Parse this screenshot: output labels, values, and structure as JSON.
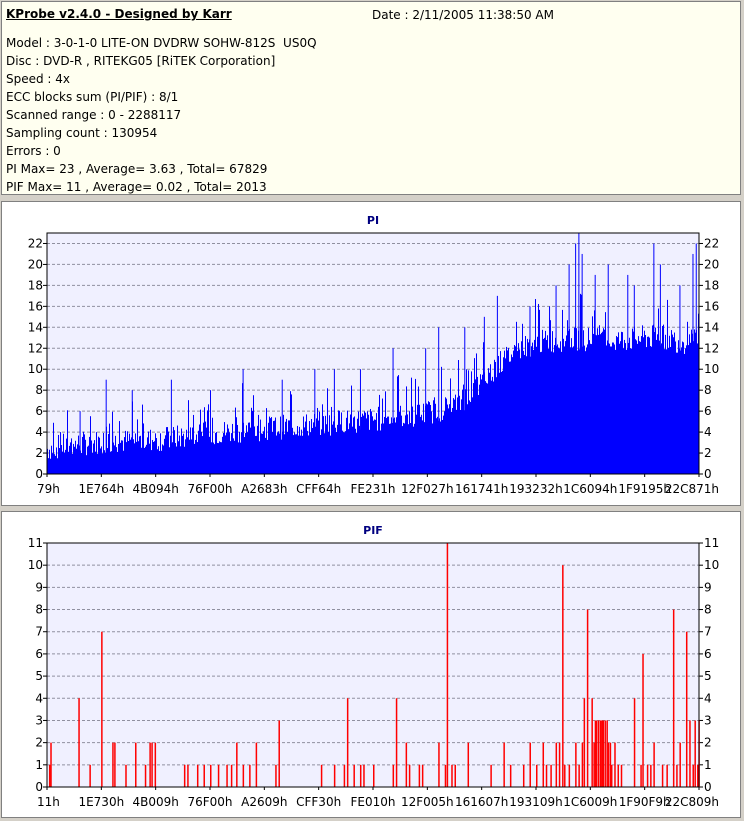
{
  "info": {
    "title": "KProbe v2.4.0 - Designed by Karr",
    "date": "Date : 2/11/2005 11:38:50 AM",
    "lines": [
      "Model : 3-0-1-0 LITE-ON DVDRW SOHW-812S  US0Q",
      "Disc : DVD-R , RITEKG05 [RiTEK Corporation]",
      "Speed : 4x",
      "ECC blocks sum (PI/PIF) : 8/1",
      "Scanned range : 0 - 2288117",
      "Sampling count : 130954",
      "Errors : 0",
      "PI Max= 23 , Average= 3.63 , Total= 67829",
      "PIF Max= 11 , Average= 0.02 , Total= 2013"
    ]
  },
  "colors": {
    "pi": "#0000ff",
    "pif": "#ff0000",
    "plot_bg": "#f0f0ff",
    "grid": "#9090a0",
    "title": "#000080"
  },
  "chart_data": [
    {
      "type": "bar",
      "title": "PI",
      "ylim": [
        0,
        23
      ],
      "yticks": [
        0,
        2,
        4,
        6,
        8,
        10,
        12,
        14,
        16,
        18,
        20,
        22
      ],
      "tick_labels": [
        "79h",
        "1E764h",
        "4B094h",
        "76F00h",
        "A2683h",
        "CFF64h",
        "FE231h",
        "12F027h",
        "161741h",
        "193232h",
        "1C6094h",
        "1F9195h",
        "22C871h"
      ],
      "grid": true,
      "baseline": [
        2.3,
        2.6,
        2.8,
        3,
        3,
        3.1,
        3.2,
        3.4,
        3.6,
        3.8,
        4,
        4.1,
        4.3,
        4.4,
        4.6,
        4.7,
        4.9,
        5,
        5.2,
        5.4,
        5.6,
        6,
        6.6,
        8,
        10,
        11.5,
        12.3,
        12.6,
        12.8,
        12.8,
        12.6,
        12.7,
        12.9,
        13,
        12.5,
        12.6
      ],
      "peaks": [
        [
          0.1,
          4
        ],
        [
          0.02,
          4
        ],
        [
          0.05,
          6
        ],
        [
          0.09,
          9
        ],
        [
          0.13,
          8
        ],
        [
          0.19,
          9
        ],
        [
          0.25,
          8
        ],
        [
          0.3,
          10
        ],
        [
          0.36,
          9
        ],
        [
          0.41,
          10
        ],
        [
          0.44,
          10
        ],
        [
          0.48,
          10
        ],
        [
          0.53,
          12
        ],
        [
          0.58,
          12
        ],
        [
          0.6,
          14
        ],
        [
          0.64,
          14
        ],
        [
          0.67,
          15
        ],
        [
          0.69,
          17
        ],
        [
          0.74,
          16
        ],
        [
          0.77,
          16
        ],
        [
          0.78,
          18
        ],
        [
          0.82,
          21
        ],
        [
          0.8,
          20
        ],
        [
          0.84,
          19
        ],
        [
          0.81,
          22
        ],
        [
          0.815,
          23
        ],
        [
          0.86,
          20
        ],
        [
          0.89,
          19
        ],
        [
          0.9,
          18
        ],
        [
          0.93,
          22
        ],
        [
          0.94,
          20
        ],
        [
          0.97,
          18
        ],
        [
          0.99,
          21
        ],
        [
          0.995,
          22
        ]
      ]
    },
    {
      "type": "bar",
      "title": "PIF",
      "ylim": [
        0,
        11
      ],
      "yticks": [
        0,
        1,
        2,
        3,
        4,
        5,
        6,
        7,
        8,
        9,
        10,
        11
      ],
      "tick_labels": [
        "11h",
        "1E730h",
        "4B009h",
        "76F00h",
        "A2609h",
        "CFF30h",
        "FE010h",
        "12F005h",
        "161607h",
        "193109h",
        "1C6009h",
        "1F90F9h",
        "22C809h"
      ],
      "grid": true,
      "spikes": [
        [
          0.003,
          1
        ],
        [
          0.005,
          2
        ],
        [
          0.048,
          4
        ],
        [
          0.065,
          1
        ],
        [
          0.083,
          7
        ],
        [
          0.1,
          2
        ],
        [
          0.103,
          2
        ],
        [
          0.12,
          1
        ],
        [
          0.135,
          2
        ],
        [
          0.15,
          1
        ],
        [
          0.157,
          2
        ],
        [
          0.16,
          2
        ],
        [
          0.165,
          2
        ],
        [
          0.21,
          1
        ],
        [
          0.215,
          1
        ],
        [
          0.23,
          1
        ],
        [
          0.24,
          1
        ],
        [
          0.25,
          1
        ],
        [
          0.262,
          1
        ],
        [
          0.275,
          1
        ],
        [
          0.282,
          1
        ],
        [
          0.29,
          2
        ],
        [
          0.3,
          1
        ],
        [
          0.31,
          1
        ],
        [
          0.32,
          2
        ],
        [
          0.35,
          1
        ],
        [
          0.355,
          3
        ],
        [
          0.42,
          1
        ],
        [
          0.44,
          1
        ],
        [
          0.455,
          1
        ],
        [
          0.46,
          4
        ],
        [
          0.47,
          1
        ],
        [
          0.48,
          1
        ],
        [
          0.485,
          1
        ],
        [
          0.5,
          1
        ],
        [
          0.53,
          1
        ],
        [
          0.535,
          4
        ],
        [
          0.55,
          2
        ],
        [
          0.555,
          1
        ],
        [
          0.57,
          1
        ],
        [
          0.575,
          1
        ],
        [
          0.6,
          2
        ],
        [
          0.61,
          1
        ],
        [
          0.613,
          11
        ],
        [
          0.62,
          1
        ],
        [
          0.625,
          1
        ],
        [
          0.645,
          2
        ],
        [
          0.68,
          1
        ],
        [
          0.7,
          2
        ],
        [
          0.71,
          1
        ],
        [
          0.73,
          1
        ],
        [
          0.74,
          2
        ],
        [
          0.75,
          1
        ],
        [
          0.76,
          2
        ],
        [
          0.765,
          1
        ],
        [
          0.772,
          1
        ],
        [
          0.78,
          2
        ],
        [
          0.785,
          2
        ],
        [
          0.79,
          10
        ],
        [
          0.793,
          1
        ],
        [
          0.8,
          1
        ],
        [
          0.81,
          2
        ],
        [
          0.815,
          1
        ],
        [
          0.82,
          2
        ],
        [
          0.823,
          4
        ],
        [
          0.828,
          8
        ],
        [
          0.835,
          4
        ],
        [
          0.838,
          2
        ],
        [
          0.84,
          3
        ],
        [
          0.842,
          3
        ],
        [
          0.845,
          3
        ],
        [
          0.848,
          3
        ],
        [
          0.85,
          3
        ],
        [
          0.852,
          3
        ],
        [
          0.855,
          3
        ],
        [
          0.858,
          3
        ],
        [
          0.86,
          2
        ],
        [
          0.863,
          2
        ],
        [
          0.865,
          1
        ],
        [
          0.87,
          2
        ],
        [
          0.875,
          1
        ],
        [
          0.88,
          1
        ],
        [
          0.9,
          4
        ],
        [
          0.91,
          1
        ],
        [
          0.913,
          6
        ],
        [
          0.92,
          1
        ],
        [
          0.925,
          1
        ],
        [
          0.93,
          2
        ],
        [
          0.943,
          1
        ],
        [
          0.95,
          1
        ],
        [
          0.96,
          8
        ],
        [
          0.965,
          1
        ],
        [
          0.97,
          2
        ],
        [
          0.98,
          7
        ],
        [
          0.985,
          3
        ],
        [
          0.99,
          1
        ],
        [
          0.993,
          3
        ],
        [
          0.997,
          1
        ],
        [
          0.999,
          3
        ]
      ]
    }
  ]
}
